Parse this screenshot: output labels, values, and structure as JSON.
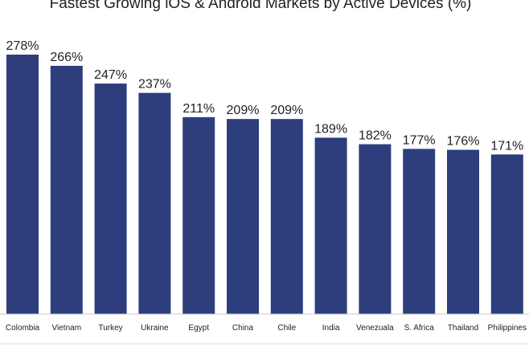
{
  "chart_data": {
    "type": "bar",
    "title": "Fastest Growing iOS & Android Markets by Active Devices (%)",
    "categories": [
      "Colombia",
      "Vietnam",
      "Turkey",
      "Ukraine",
      "Egypt",
      "China",
      "Chile",
      "India",
      "Venezuala",
      "S. Africa",
      "Thailand",
      "Philippines"
    ],
    "values": [
      278,
      266,
      247,
      237,
      211,
      209,
      209,
      189,
      182,
      177,
      176,
      171
    ],
    "value_labels": [
      "278%",
      "266%",
      "247%",
      "237%",
      "211%",
      "209%",
      "209%",
      "189%",
      "182%",
      "177%",
      "176%",
      "171%"
    ],
    "xlabel": "",
    "ylabel": "",
    "ylim": [
      0,
      278
    ],
    "bar_color": "#2e3d7c",
    "grid": false,
    "legend": "none"
  }
}
